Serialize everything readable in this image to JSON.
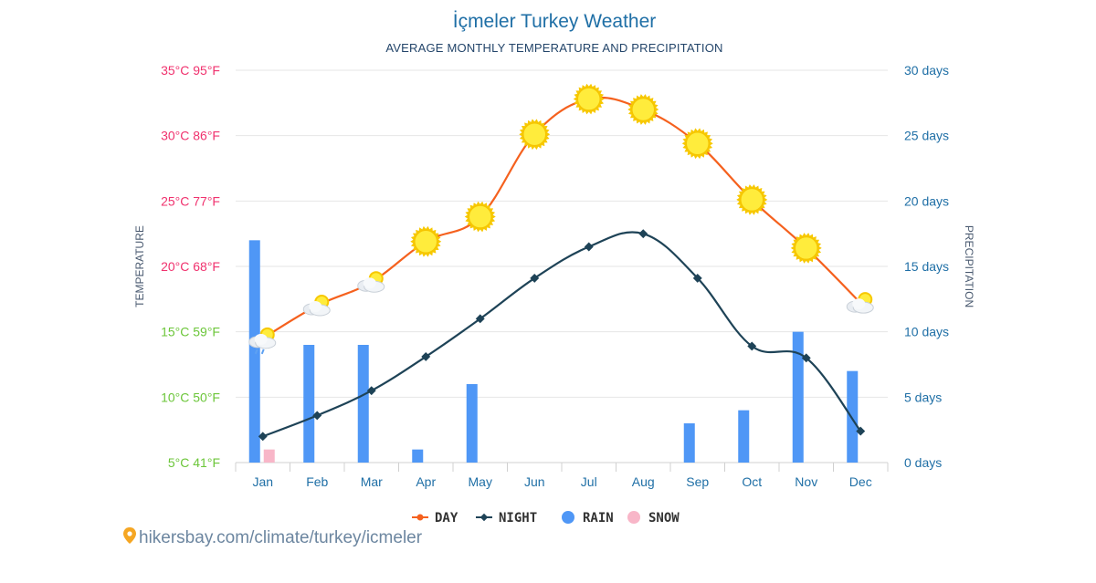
{
  "colors": {
    "day": "#f5611e",
    "night": "#1e4357",
    "rain": "#4f97f6",
    "snow": "#f8b6c8",
    "grid": "#e6e6e6",
    "temp_hot": "#f0326e",
    "temp_mild": "#6cc63a",
    "precip_axis": "#1f6fa6"
  },
  "chart_data": {
    "type": "line+bar",
    "title": "İçmeler Turkey Weather",
    "subtitle": "AVERAGE MONTHLY TEMPERATURE AND PRECIPITATION",
    "left_axis": {
      "title": "TEMPERATURE",
      "range": [
        5,
        35
      ],
      "ticks": [
        {
          "value": 35,
          "label": "35°C 95°F",
          "color": "#f0326e"
        },
        {
          "value": 30,
          "label": "30°C 86°F",
          "color": "#f0326e"
        },
        {
          "value": 25,
          "label": "25°C 77°F",
          "color": "#f0326e"
        },
        {
          "value": 20,
          "label": "20°C 68°F",
          "color": "#f0326e"
        },
        {
          "value": 15,
          "label": "15°C 59°F",
          "color": "#6cc63a"
        },
        {
          "value": 10,
          "label": "10°C 50°F",
          "color": "#6cc63a"
        },
        {
          "value": 5,
          "label": "5°C 41°F",
          "color": "#6cc63a"
        }
      ]
    },
    "right_axis": {
      "title": "PRECIPITATION",
      "range": [
        0,
        30
      ],
      "ticks": [
        {
          "value": 30,
          "label": "30 days"
        },
        {
          "value": 25,
          "label": "25 days"
        },
        {
          "value": 20,
          "label": "20 days"
        },
        {
          "value": 15,
          "label": "15 days"
        },
        {
          "value": 10,
          "label": "10 days"
        },
        {
          "value": 5,
          "label": "5 days"
        },
        {
          "value": 0,
          "label": "0 days"
        }
      ]
    },
    "categories": [
      "Jan",
      "Feb",
      "Mar",
      "Apr",
      "May",
      "Jun",
      "Jul",
      "Aug",
      "Sep",
      "Oct",
      "Nov",
      "Dec"
    ],
    "series": [
      {
        "name": "DAY",
        "axis": "left",
        "kind": "line",
        "values": [
          14.5,
          17.0,
          18.8,
          21.9,
          23.8,
          30.1,
          32.8,
          32.0,
          29.4,
          25.1,
          21.4,
          17.2
        ],
        "icons": [
          "partly-cloudy-rain",
          "partly-cloudy",
          "partly-cloudy",
          "sun",
          "sun",
          "sun",
          "sun",
          "sun",
          "sun",
          "sun",
          "sun",
          "partly-cloudy"
        ]
      },
      {
        "name": "NIGHT",
        "axis": "left",
        "kind": "line",
        "values": [
          7.0,
          8.6,
          10.5,
          13.1,
          16.0,
          19.1,
          21.5,
          22.5,
          19.1,
          13.9,
          13.0,
          7.4
        ]
      },
      {
        "name": "RAIN",
        "axis": "right",
        "kind": "bar",
        "values": [
          17,
          9,
          9,
          1,
          6,
          0,
          0,
          0,
          3,
          4,
          10,
          7
        ]
      },
      {
        "name": "SNOW",
        "axis": "right",
        "kind": "bar",
        "values": [
          1,
          0,
          0,
          0,
          0,
          0,
          0,
          0,
          0,
          0,
          0,
          0
        ]
      }
    ],
    "legend": [
      {
        "name": "DAY",
        "marker": "line-dot"
      },
      {
        "name": "NIGHT",
        "marker": "line-diamond"
      },
      {
        "name": "RAIN",
        "marker": "circle"
      },
      {
        "name": "SNOW",
        "marker": "circle"
      }
    ],
    "legend_position": "bottom-center"
  },
  "footer": {
    "source": "hikersbay.com/climate/turkey/icmeler"
  }
}
